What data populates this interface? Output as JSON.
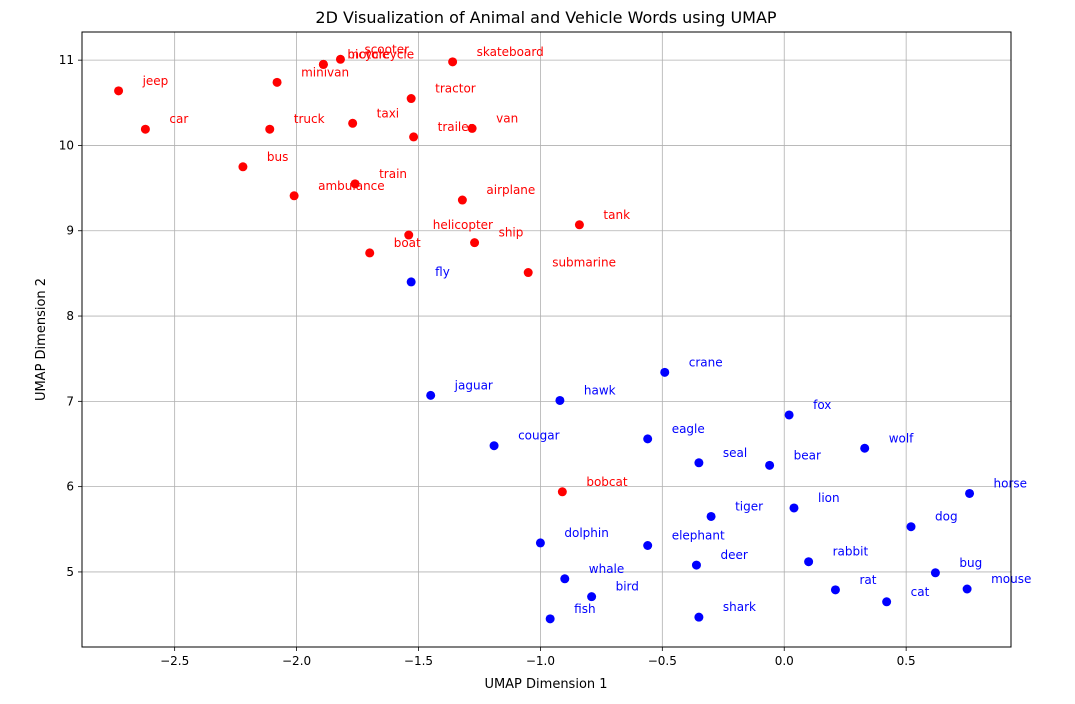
{
  "chart_data": {
    "type": "scatter",
    "title": "2D Visualization of Animal and Vehicle Words using UMAP",
    "xlabel": "UMAP Dimension 1",
    "ylabel": "UMAP Dimension 2",
    "xlim": [
      -2.88,
      0.93
    ],
    "ylim": [
      4.12,
      11.33
    ],
    "xticks": [
      -2.5,
      -2.0,
      -1.5,
      -1.0,
      -0.5,
      0.0,
      0.5
    ],
    "xtick_labels": [
      "−2.5",
      "−2.0",
      "−1.5",
      "−1.0",
      "−0.5",
      "0.0",
      "0.5"
    ],
    "yticks": [
      5,
      6,
      7,
      8,
      9,
      10,
      11
    ],
    "ytick_labels": [
      "5",
      "6",
      "7",
      "8",
      "9",
      "10",
      "11"
    ],
    "grid": true,
    "colors": {
      "red": "#ff0000",
      "blue": "#0000ff"
    },
    "points": [
      {
        "label": "jeep",
        "x": -2.73,
        "y": 10.64,
        "color": "red"
      },
      {
        "label": "car",
        "x": -2.62,
        "y": 10.19,
        "color": "red"
      },
      {
        "label": "minivan",
        "x": -2.08,
        "y": 10.74,
        "color": "red"
      },
      {
        "label": "motorcycle",
        "x": -1.89,
        "y": 10.95,
        "color": "red"
      },
      {
        "label": "scooter",
        "x": -1.82,
        "y": 11.01,
        "color": "red"
      },
      {
        "label": "bicycle",
        "x": -1.89,
        "y": 10.95,
        "color": "red"
      },
      {
        "label": "skateboard",
        "x": -1.36,
        "y": 10.98,
        "color": "red"
      },
      {
        "label": "truck",
        "x": -2.11,
        "y": 10.19,
        "color": "red"
      },
      {
        "label": "taxi",
        "x": -1.77,
        "y": 10.26,
        "color": "red"
      },
      {
        "label": "tractor",
        "x": -1.53,
        "y": 10.55,
        "color": "red"
      },
      {
        "label": "trailer",
        "x": -1.52,
        "y": 10.1,
        "color": "red"
      },
      {
        "label": "van",
        "x": -1.28,
        "y": 10.2,
        "color": "red"
      },
      {
        "label": "bus",
        "x": -2.22,
        "y": 9.75,
        "color": "red"
      },
      {
        "label": "ambulance",
        "x": -2.01,
        "y": 9.41,
        "color": "red"
      },
      {
        "label": "train",
        "x": -1.76,
        "y": 9.55,
        "color": "red"
      },
      {
        "label": "airplane",
        "x": -1.32,
        "y": 9.36,
        "color": "red"
      },
      {
        "label": "tank",
        "x": -0.84,
        "y": 9.07,
        "color": "red"
      },
      {
        "label": "helicopter",
        "x": -1.54,
        "y": 8.95,
        "color": "red"
      },
      {
        "label": "boat",
        "x": -1.7,
        "y": 8.74,
        "color": "red"
      },
      {
        "label": "ship",
        "x": -1.27,
        "y": 8.86,
        "color": "red"
      },
      {
        "label": "submarine",
        "x": -1.05,
        "y": 8.51,
        "color": "red"
      },
      {
        "label": "bobcat",
        "x": -0.91,
        "y": 5.94,
        "color": "red"
      },
      {
        "label": "fly",
        "x": -1.53,
        "y": 8.4,
        "color": "blue"
      },
      {
        "label": "crane",
        "x": -0.49,
        "y": 7.34,
        "color": "blue"
      },
      {
        "label": "jaguar",
        "x": -1.45,
        "y": 7.07,
        "color": "blue"
      },
      {
        "label": "hawk",
        "x": -0.92,
        "y": 7.01,
        "color": "blue"
      },
      {
        "label": "fox",
        "x": 0.02,
        "y": 6.84,
        "color": "blue"
      },
      {
        "label": "eagle",
        "x": -0.56,
        "y": 6.56,
        "color": "blue"
      },
      {
        "label": "cougar",
        "x": -1.19,
        "y": 6.48,
        "color": "blue"
      },
      {
        "label": "wolf",
        "x": 0.33,
        "y": 6.45,
        "color": "blue"
      },
      {
        "label": "seal",
        "x": -0.35,
        "y": 6.28,
        "color": "blue"
      },
      {
        "label": "bear",
        "x": -0.06,
        "y": 6.25,
        "color": "blue"
      },
      {
        "label": "horse",
        "x": 0.76,
        "y": 5.92,
        "color": "blue"
      },
      {
        "label": "lion",
        "x": 0.04,
        "y": 5.75,
        "color": "blue"
      },
      {
        "label": "tiger",
        "x": -0.3,
        "y": 5.65,
        "color": "blue"
      },
      {
        "label": "dog",
        "x": 0.52,
        "y": 5.53,
        "color": "blue"
      },
      {
        "label": "dolphin",
        "x": -1.0,
        "y": 5.34,
        "color": "blue"
      },
      {
        "label": "elephant",
        "x": -0.56,
        "y": 5.31,
        "color": "blue"
      },
      {
        "label": "rabbit",
        "x": 0.1,
        "y": 5.12,
        "color": "blue"
      },
      {
        "label": "deer",
        "x": -0.36,
        "y": 5.08,
        "color": "blue"
      },
      {
        "label": "bug",
        "x": 0.62,
        "y": 4.99,
        "color": "blue"
      },
      {
        "label": "whale",
        "x": -0.9,
        "y": 4.92,
        "color": "blue"
      },
      {
        "label": "mouse",
        "x": 0.75,
        "y": 4.8,
        "color": "blue"
      },
      {
        "label": "rat",
        "x": 0.21,
        "y": 4.79,
        "color": "blue"
      },
      {
        "label": "cat",
        "x": 0.42,
        "y": 4.65,
        "color": "blue"
      },
      {
        "label": "bird",
        "x": -0.79,
        "y": 4.71,
        "color": "blue"
      },
      {
        "label": "fish",
        "x": -0.96,
        "y": 4.45,
        "color": "blue"
      },
      {
        "label": "shark",
        "x": -0.35,
        "y": 4.47,
        "color": "blue"
      }
    ]
  }
}
